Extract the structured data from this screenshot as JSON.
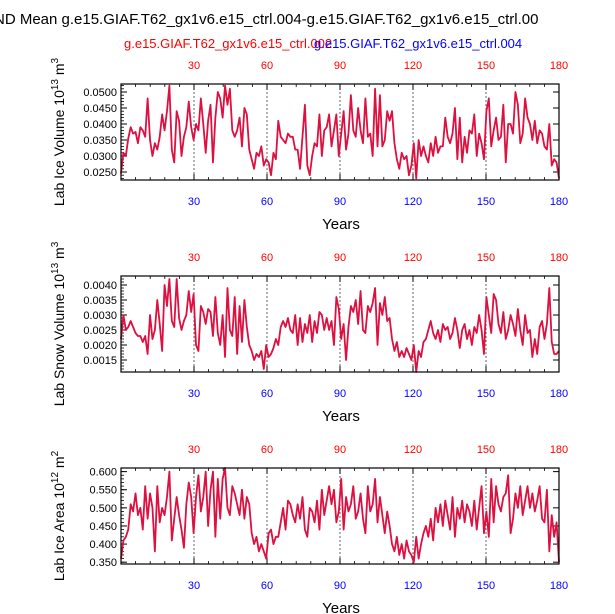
{
  "title": "ND Mean g.e15.GIAF.T62_gx1v6.e15_ctrl.004-g.e15.GIAF.T62_gx1v6.e15_ctrl.00",
  "subtitle_red": "g.e15.GIAF.T62_gx1v6.e15_ctrl.002",
  "subtitle_blue": "g.e15.GIAF.T62_gx1v6.e15_ctrl.004",
  "colors": {
    "series_a": "#ff0000",
    "series_b": "#0000ff",
    "blend": "#dd1040",
    "axis": "#000000"
  },
  "chart_data": [
    {
      "type": "line",
      "ylabel_main": "Lab Ice Volume 10",
      "ylabel_exp": "13",
      "ylabel_unit": " m",
      "ylabel_unit_exp": "3",
      "xlabel": "Years",
      "xlim": [
        0,
        180
      ],
      "ylim": [
        0.0225,
        0.0525
      ],
      "yticks": [
        0.025,
        0.03,
        0.035,
        0.04,
        0.045,
        0.05
      ],
      "ytick_labels": [
        "0.0250",
        "0.0300",
        "0.0350",
        "0.0400",
        "0.0450",
        "0.0500"
      ],
      "xticks": [
        30,
        60,
        90,
        120,
        150,
        180
      ],
      "xtick_labels": [
        "30",
        "60",
        "90",
        "120",
        "150",
        "180"
      ],
      "series": [
        {
          "name": "g.e15.GIAF.T62_gx1v6.e15_ctrl.002 / ctrl.004",
          "values": [
            0.0245,
            0.031,
            0.03,
            0.0355,
            0.039,
            0.037,
            0.0375,
            0.034,
            0.039,
            0.038,
            0.036,
            0.048,
            0.035,
            0.03,
            0.034,
            0.032,
            0.036,
            0.043,
            0.038,
            0.044,
            0.052,
            0.032,
            0.028,
            0.044,
            0.041,
            0.03,
            0.036,
            0.039,
            0.047,
            0.039,
            0.035,
            0.04,
            0.038,
            0.048,
            0.04,
            0.031,
            0.041,
            0.046,
            0.028,
            0.042,
            0.05,
            0.048,
            0.042,
            0.052,
            0.046,
            0.051,
            0.038,
            0.036,
            0.038,
            0.042,
            0.033,
            0.045,
            0.043,
            0.032,
            0.029,
            0.026,
            0.031,
            0.03,
            0.033,
            0.027,
            0.029,
            0.028,
            0.024,
            0.031,
            0.029,
            0.041,
            0.036,
            0.035,
            0.034,
            0.037,
            0.036,
            0.036,
            0.032,
            0.032,
            0.026,
            0.036,
            0.046,
            0.027,
            0.024,
            0.03,
            0.034,
            0.033,
            0.043,
            0.03,
            0.038,
            0.039,
            0.043,
            0.033,
            0.038,
            0.043,
            0.03,
            0.037,
            0.044,
            0.032,
            0.037,
            0.049,
            0.038,
            0.036,
            0.045,
            0.038,
            0.034,
            0.048,
            0.036,
            0.037,
            0.03,
            0.051,
            0.033,
            0.049,
            0.033,
            0.035,
            0.044,
            0.041,
            0.044,
            0.034,
            0.029,
            0.026,
            0.031,
            0.029,
            0.03,
            0.024,
            0.027,
            0.034,
            0.023,
            0.035,
            0.03,
            0.033,
            0.03,
            0.028,
            0.034,
            0.03,
            0.036,
            0.031,
            0.033,
            0.033,
            0.042,
            0.036,
            0.034,
            0.037,
            0.045,
            0.029,
            0.042,
            0.028,
            0.036,
            0.031,
            0.038,
            0.037,
            0.043,
            0.03,
            0.037,
            0.034,
            0.029,
            0.044,
            0.048,
            0.033,
            0.038,
            0.042,
            0.035,
            0.036,
            0.046,
            0.028,
            0.04,
            0.04,
            0.037,
            0.05,
            0.046,
            0.034,
            0.037,
            0.048,
            0.042,
            0.04,
            0.035,
            0.041,
            0.034,
            0.038,
            0.037,
            0.033,
            0.032,
            0.04,
            0.027,
            0.029,
            0.028,
            0.023
          ]
        }
      ]
    },
    {
      "type": "line",
      "ylabel_main": "Lab Snow Volume 10",
      "ylabel_exp": "13",
      "ylabel_unit": " m",
      "ylabel_unit_exp": "3",
      "xlabel": "Years",
      "xlim": [
        0,
        180
      ],
      "ylim": [
        0.0011,
        0.0043
      ],
      "yticks": [
        0.0015,
        0.002,
        0.0025,
        0.003,
        0.0035,
        0.004
      ],
      "ytick_labels": [
        "0.0015",
        "0.0020",
        "0.0025",
        "0.0030",
        "0.0035",
        "0.0040"
      ],
      "xticks": [
        30,
        60,
        90,
        120,
        150,
        180
      ],
      "xtick_labels": [
        "30",
        "60",
        "90",
        "120",
        "150",
        "180"
      ],
      "series": [
        {
          "name": "g.e15.GIAF.T62_gx1v6.e15_ctrl.002 / ctrl.004",
          "values": [
            0.0022,
            0.003,
            0.0025,
            0.0026,
            0.0028,
            0.0026,
            0.0024,
            0.0023,
            0.0023,
            0.0021,
            0.0023,
            0.0017,
            0.003,
            0.0022,
            0.0025,
            0.0035,
            0.0027,
            0.0018,
            0.004,
            0.0033,
            0.0042,
            0.0028,
            0.0026,
            0.0042,
            0.0029,
            0.0025,
            0.0028,
            0.003,
            0.0038,
            0.0031,
            0.0037,
            0.002,
            0.0018,
            0.0033,
            0.0031,
            0.0027,
            0.0032,
            0.0031,
            0.0023,
            0.0036,
            0.0024,
            0.002,
            0.003,
            0.0016,
            0.0039,
            0.0025,
            0.0023,
            0.0036,
            0.0017,
            0.0033,
            0.0021,
            0.0035,
            0.0026,
            0.002,
            0.0018,
            0.0015,
            0.0017,
            0.0016,
            0.0018,
            0.0012,
            0.002,
            0.0016,
            0.0017,
            0.0019,
            0.0022,
            0.002,
            0.0026,
            0.0028,
            0.0026,
            0.0029,
            0.0025,
            0.0024,
            0.003,
            0.002,
            0.0029,
            0.0021,
            0.0027,
            0.0024,
            0.003,
            0.0021,
            0.0028,
            0.0024,
            0.0031,
            0.003,
            0.0025,
            0.0029,
            0.0025,
            0.0028,
            0.002,
            0.0036,
            0.0032,
            0.0022,
            0.0027,
            0.0015,
            0.0026,
            0.0033,
            0.0031,
            0.0035,
            0.0027,
            0.0038,
            0.0025,
            0.0024,
            0.0033,
            0.0031,
            0.0034,
            0.0039,
            0.002,
            0.0034,
            0.003,
            0.0036,
            0.0028,
            0.0029,
            0.0022,
            0.0018,
            0.0021,
            0.0016,
            0.0018,
            0.0016,
            0.0019,
            0.0017,
            0.0015,
            0.002,
            0.0011,
            0.0018,
            0.0016,
            0.0021,
            0.0022,
            0.0025,
            0.0028,
            0.0024,
            0.0022,
            0.0025,
            0.0021,
            0.0027,
            0.0025,
            0.0026,
            0.0022,
            0.0024,
            0.0029,
            0.0025,
            0.0019,
            0.0025,
            0.0027,
            0.0022,
            0.0025,
            0.002,
            0.0026,
            0.0024,
            0.003,
            0.0025,
            0.0017,
            0.0036,
            0.003,
            0.0024,
            0.0037,
            0.0035,
            0.0027,
            0.0024,
            0.0031,
            0.0022,
            0.0025,
            0.003,
            0.0027,
            0.0023,
            0.0032,
            0.0025,
            0.002,
            0.003,
            0.0024,
            0.0025,
            0.0016,
            0.0022,
            0.0017,
            0.0026,
            0.0028,
            0.0022,
            0.0027,
            0.0039,
            0.0021,
            0.0017,
            0.0017,
            0.0018
          ]
        }
      ]
    },
    {
      "type": "line",
      "ylabel_main": "Lab Ice Area 10",
      "ylabel_exp": "12",
      "ylabel_unit": " m",
      "ylabel_unit_exp": "2",
      "xlabel": "Years",
      "xlim": [
        0,
        180
      ],
      "ylim": [
        0.345,
        0.61
      ],
      "yticks": [
        0.35,
        0.4,
        0.45,
        0.5,
        0.55,
        0.6
      ],
      "ytick_labels": [
        "0.350",
        "0.400",
        "0.450",
        "0.500",
        "0.550",
        "0.600"
      ],
      "xticks": [
        30,
        60,
        90,
        120,
        150,
        180
      ],
      "xtick_labels": [
        "30",
        "60",
        "90",
        "120",
        "150",
        "180"
      ],
      "series": [
        {
          "name": "g.e15.GIAF.T62_gx1v6.e15_ctrl.002 / ctrl.004",
          "values": [
            0.36,
            0.41,
            0.42,
            0.44,
            0.51,
            0.49,
            0.54,
            0.48,
            0.5,
            0.44,
            0.56,
            0.47,
            0.54,
            0.5,
            0.38,
            0.56,
            0.46,
            0.5,
            0.48,
            0.53,
            0.6,
            0.41,
            0.47,
            0.53,
            0.48,
            0.44,
            0.39,
            0.51,
            0.57,
            0.53,
            0.43,
            0.53,
            0.59,
            0.49,
            0.53,
            0.6,
            0.45,
            0.55,
            0.6,
            0.42,
            0.58,
            0.47,
            0.58,
            0.61,
            0.5,
            0.48,
            0.56,
            0.54,
            0.51,
            0.48,
            0.55,
            0.47,
            0.53,
            0.51,
            0.43,
            0.4,
            0.42,
            0.38,
            0.4,
            0.38,
            0.36,
            0.43,
            0.44,
            0.4,
            0.42,
            0.42,
            0.46,
            0.5,
            0.44,
            0.52,
            0.51,
            0.48,
            0.46,
            0.51,
            0.47,
            0.53,
            0.44,
            0.42,
            0.5,
            0.49,
            0.46,
            0.52,
            0.44,
            0.55,
            0.48,
            0.52,
            0.56,
            0.51,
            0.55,
            0.46,
            0.49,
            0.58,
            0.44,
            0.53,
            0.49,
            0.51,
            0.56,
            0.47,
            0.49,
            0.54,
            0.47,
            0.43,
            0.56,
            0.49,
            0.51,
            0.58,
            0.46,
            0.53,
            0.48,
            0.43,
            0.49,
            0.45,
            0.4,
            0.38,
            0.42,
            0.37,
            0.4,
            0.36,
            0.41,
            0.38,
            0.37,
            0.35,
            0.42,
            0.36,
            0.4,
            0.43,
            0.45,
            0.42,
            0.47,
            0.41,
            0.5,
            0.46,
            0.51,
            0.45,
            0.52,
            0.48,
            0.44,
            0.53,
            0.42,
            0.5,
            0.47,
            0.52,
            0.46,
            0.51,
            0.49,
            0.45,
            0.52,
            0.44,
            0.5,
            0.56,
            0.43,
            0.49,
            0.42,
            0.58,
            0.46,
            0.56,
            0.51,
            0.49,
            0.53,
            0.54,
            0.59,
            0.43,
            0.47,
            0.54,
            0.5,
            0.56,
            0.48,
            0.52,
            0.56,
            0.5,
            0.54,
            0.49,
            0.52,
            0.56,
            0.47,
            0.46,
            0.55,
            0.38,
            0.48,
            0.42,
            0.46,
            0.35
          ]
        }
      ]
    }
  ]
}
